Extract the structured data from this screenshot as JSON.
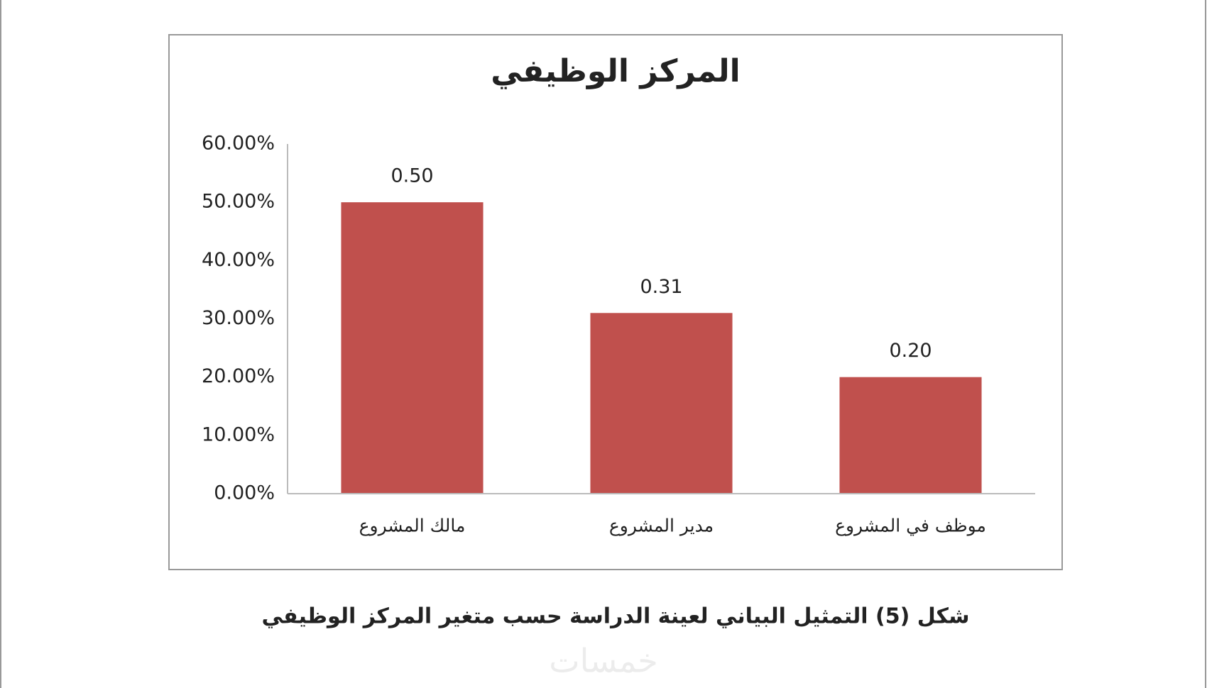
{
  "chart_data": {
    "type": "bar",
    "title": "المركز الوظيفي",
    "categories": [
      "مالك المشروع",
      "مدير المشروع",
      "موظف في المشروع"
    ],
    "values": [
      50,
      31,
      20
    ],
    "value_labels": [
      "0.50",
      "0.31",
      "0.20"
    ],
    "color": "#c0504d",
    "ylim": [
      0,
      60
    ],
    "yticks": [
      {
        "value": 0,
        "label": "0.00%"
      },
      {
        "value": 10,
        "label": "10.00%"
      },
      {
        "value": 20,
        "label": "20.00%"
      },
      {
        "value": 30,
        "label": "30.00%"
      },
      {
        "value": 40,
        "label": "40.00%"
      },
      {
        "value": 50,
        "label": "50.00%"
      },
      {
        "value": 60,
        "label": "60.00%"
      }
    ],
    "grid": false
  },
  "caption": "شكل (5) التمثيل البياني لعينة الدراسة حسب متغير المركز الوظيفي",
  "watermark": "خمسات"
}
